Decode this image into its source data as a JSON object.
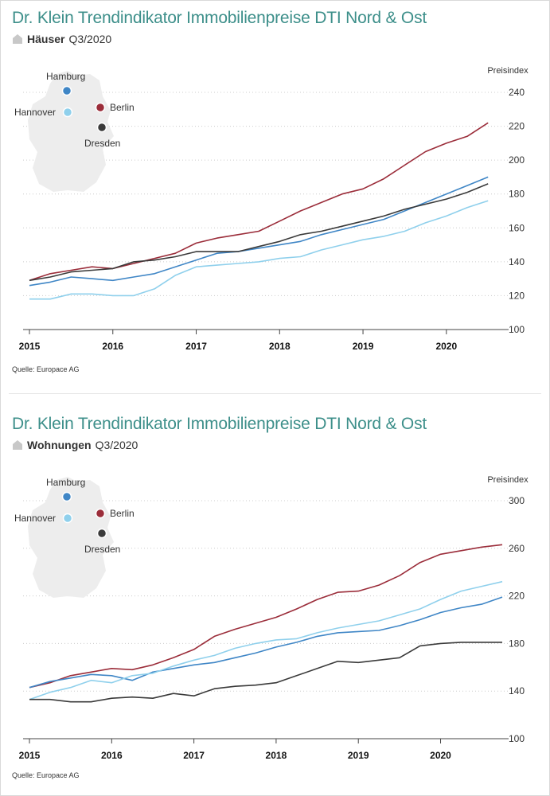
{
  "colors": {
    "title": "#3d8f8a",
    "Hamburg": "#3f86c6",
    "Berlin": "#9b2d3a",
    "Hannover": "#8fd0ec",
    "Dresden": "#3a3a3a",
    "map": "#ededed",
    "grid": "#cccccc"
  },
  "icons": {
    "subtitle_icon": "house-icon",
    "map_icon": "germany-map-icon"
  },
  "panels": [
    {
      "title": "Dr. Klein Trendindikator Immobilienpreise DTI Nord & Ost",
      "subtitle_bold": "Häuser",
      "subtitle_rest": "Q3/2020",
      "source": "Quelle: Europace AG",
      "map_labels": [
        "Hamburg",
        "Hannover",
        "Berlin",
        "Dresden"
      ]
    },
    {
      "title": "Dr. Klein Trendindikator Immobilienpreise DTI Nord & Ost",
      "subtitle_bold": "Wohnungen",
      "subtitle_rest": "Q3/2020",
      "source": "Quelle: Europace AG",
      "map_labels": [
        "Hamburg",
        "Hannover",
        "Berlin",
        "Dresden"
      ]
    }
  ],
  "chart_data": [
    {
      "type": "line",
      "ylabel": "Preisindex",
      "ylim": [
        100,
        240
      ],
      "yticks": [
        100,
        120,
        140,
        160,
        180,
        200,
        220,
        240
      ],
      "xlim": [
        2015,
        2020.67
      ],
      "xticks": [
        2015,
        2016,
        2017,
        2018,
        2019,
        2020
      ],
      "grid": "horizontal dotted",
      "x": [
        2015.0,
        2015.25,
        2015.5,
        2015.75,
        2016.0,
        2016.25,
        2016.5,
        2016.75,
        2017.0,
        2017.25,
        2017.5,
        2017.75,
        2018.0,
        2018.25,
        2018.5,
        2018.75,
        2019.0,
        2019.25,
        2019.5,
        2019.75,
        2020.0,
        2020.25,
        2020.5
      ],
      "series": [
        {
          "name": "Berlin",
          "values": [
            129,
            133,
            135,
            137,
            136,
            139,
            142,
            145,
            151,
            154,
            156,
            158,
            164,
            170,
            175,
            180,
            183,
            189,
            197,
            205,
            210,
            214,
            222
          ]
        },
        {
          "name": "Hamburg",
          "values": [
            126,
            128,
            131,
            130,
            129,
            131,
            133,
            137,
            141,
            145,
            146,
            148,
            150,
            152,
            156,
            159,
            162,
            165,
            170,
            175,
            180,
            185,
            190
          ]
        },
        {
          "name": "Hannover",
          "values": [
            118,
            118,
            121,
            121,
            120,
            120,
            124,
            132,
            137,
            138,
            139,
            140,
            142,
            143,
            147,
            150,
            153,
            155,
            158,
            163,
            167,
            172,
            176
          ]
        },
        {
          "name": "Dresden",
          "values": [
            129,
            131,
            134,
            135,
            136,
            140,
            141,
            143,
            146,
            146,
            146,
            149,
            152,
            156,
            158,
            161,
            164,
            167,
            171,
            174,
            177,
            181,
            186
          ]
        }
      ]
    },
    {
      "type": "line",
      "ylabel": "Preisindex",
      "ylim": [
        100,
        300
      ],
      "yticks": [
        100,
        140,
        180,
        220,
        260,
        300
      ],
      "xlim": [
        2015,
        2020.75
      ],
      "xticks": [
        2015,
        2016,
        2017,
        2018,
        2019,
        2020
      ],
      "grid": "horizontal dotted",
      "x": [
        2015.0,
        2015.25,
        2015.5,
        2015.75,
        2016.0,
        2016.25,
        2016.5,
        2016.75,
        2017.0,
        2017.25,
        2017.5,
        2017.75,
        2018.0,
        2018.25,
        2018.5,
        2018.75,
        2019.0,
        2019.25,
        2019.5,
        2019.75,
        2020.0,
        2020.25,
        2020.5,
        2020.75
      ],
      "series": [
        {
          "name": "Berlin",
          "values": [
            143,
            147,
            153,
            156,
            159,
            158,
            162,
            168,
            175,
            186,
            192,
            197,
            202,
            209,
            217,
            223,
            224,
            229,
            237,
            248,
            255,
            258,
            261,
            263
          ]
        },
        {
          "name": "Hamburg",
          "values": [
            143,
            148,
            151,
            154,
            153,
            149,
            156,
            159,
            162,
            164,
            168,
            172,
            177,
            181,
            186,
            189,
            190,
            191,
            195,
            200,
            206,
            210,
            213,
            219
          ]
        },
        {
          "name": "Hannover",
          "values": [
            133,
            139,
            143,
            149,
            147,
            153,
            155,
            161,
            166,
            170,
            176,
            180,
            183,
            184,
            189,
            193,
            196,
            199,
            204,
            209,
            217,
            224,
            228,
            232
          ]
        },
        {
          "name": "Dresden",
          "values": [
            133,
            133,
            131,
            131,
            134,
            135,
            134,
            138,
            136,
            142,
            144,
            145,
            147,
            153,
            159,
            165,
            164,
            166,
            168,
            178,
            180,
            181,
            181,
            181
          ]
        }
      ]
    }
  ]
}
